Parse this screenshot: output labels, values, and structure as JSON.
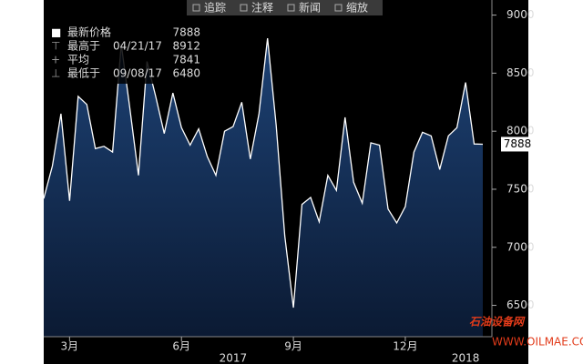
{
  "chart_data": {
    "type": "area",
    "toolbar": [
      "追踪",
      "注释",
      "新闻",
      "缩放"
    ],
    "legend": [
      {
        "label": "最新价格",
        "value": 7888
      },
      {
        "label": "最高于",
        "date": "04/21/17",
        "value": 8912
      },
      {
        "label": "平均",
        "value": 7841
      },
      {
        "label": "最低于",
        "date": "09/08/17",
        "value": 6480
      }
    ],
    "categories": [
      null,
      null,
      null,
      "3月",
      null,
      null,
      null,
      null,
      null,
      null,
      null,
      null,
      null,
      null,
      null,
      null,
      "6月",
      null,
      null,
      null,
      null,
      null,
      null,
      null,
      null,
      null,
      null,
      null,
      null,
      "9月",
      null,
      null,
      null,
      null,
      null,
      null,
      null,
      null,
      null,
      null,
      null,
      null,
      "12月",
      null,
      null,
      null,
      null,
      null,
      null,
      null,
      null,
      null
    ],
    "years": [
      null,
      null,
      null,
      null,
      null,
      null,
      null,
      null,
      null,
      null,
      null,
      null,
      null,
      null,
      null,
      null,
      null,
      null,
      null,
      null,
      null,
      null,
      "2017",
      null,
      null,
      null,
      null,
      null,
      null,
      null,
      null,
      null,
      null,
      null,
      null,
      null,
      null,
      null,
      null,
      null,
      null,
      null,
      null,
      null,
      null,
      null,
      null,
      null,
      null,
      "2018",
      null,
      null
    ],
    "series": [
      {
        "name": "最新价格",
        "color": "#ffffff",
        "values": [
          7420,
          7700,
          8150,
          7400,
          8300,
          8230,
          7850,
          7870,
          7820,
          8750,
          8200,
          7620,
          8600,
          8300,
          7980,
          8330,
          8030,
          7880,
          8020,
          7780,
          7620,
          8000,
          8040,
          8250,
          7760,
          8150,
          8800,
          8050,
          7100,
          6480,
          7370,
          7430,
          7220,
          7620,
          7490,
          8120,
          7560,
          7380,
          7900,
          7880,
          7330,
          7210,
          7350,
          7820,
          7990,
          7960,
          7670,
          7960,
          8030,
          8420,
          7890,
          7888
        ]
      }
    ],
    "ylim": [
      6230,
      9130
    ],
    "yticks": [
      6500,
      7000,
      7500,
      8000,
      8500,
      9000
    ],
    "watermark": [
      "石油设备网",
      "WWW.OILMAE.COM"
    ]
  }
}
